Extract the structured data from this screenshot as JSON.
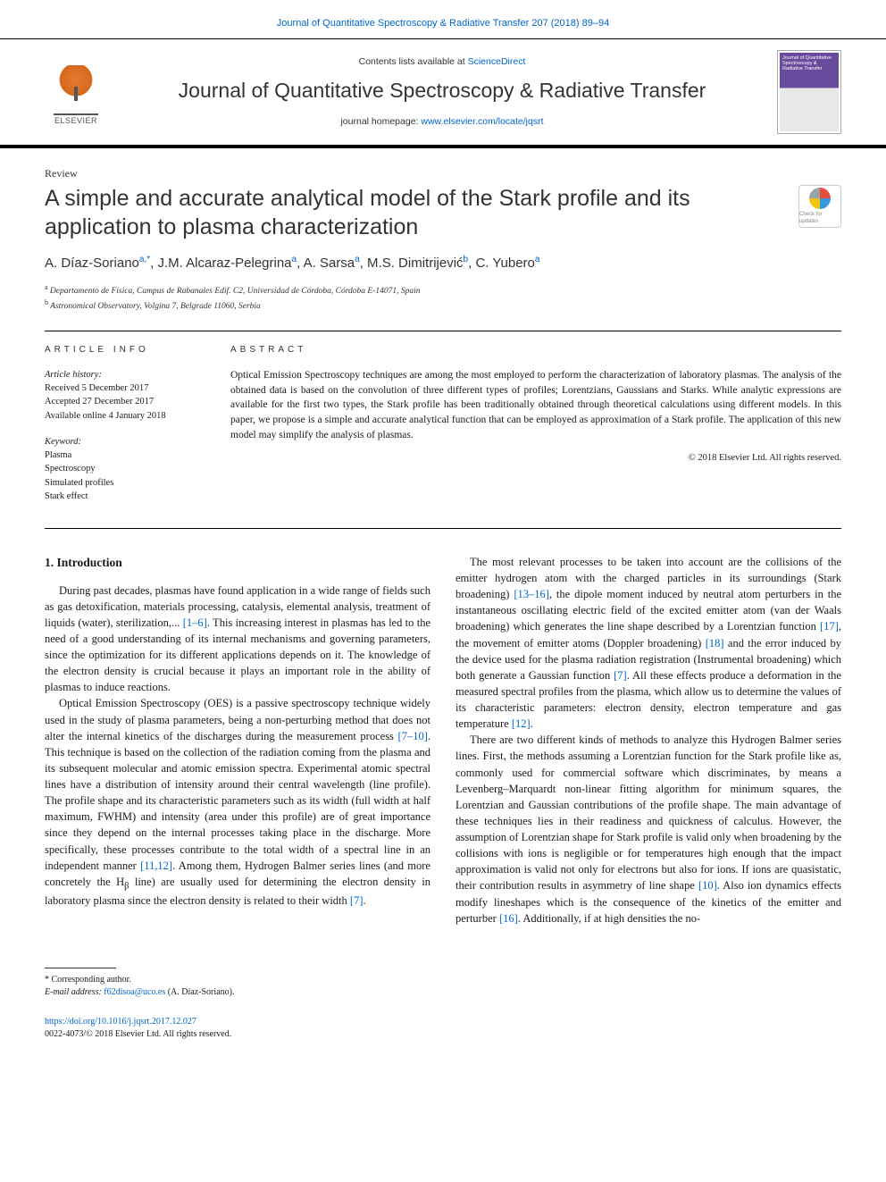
{
  "top": {
    "journal_line": "Journal of Quantitative Spectroscopy & Radiative Transfer 207 (2018) 89–94"
  },
  "header": {
    "contents_pre": "Contents lists available at ",
    "contents_link": "ScienceDirect",
    "journal_name": "Journal of Quantitative Spectroscopy & Radiative Transfer",
    "homepage_pre": "journal homepage: ",
    "homepage_link": "www.elsevier.com/locate/jqsrt",
    "elsevier": "ELSEVIER",
    "cover_title": "Journal of Quantitative Spectroscopy & Radiative Transfer"
  },
  "article": {
    "type": "Review",
    "title": "A simple and accurate analytical model of the Stark profile and its application to plasma characterization",
    "crossmark": "Check for updates",
    "authors_html": "A. Díaz-Soriano<sup>a,*</sup>, J.M. Alcaraz-Pelegrina<sup>a</sup>, A. Sarsa<sup>a</sup>, M.S. Dimitrijević<sup>b</sup>, C. Yubero<sup>a</sup>",
    "affiliations": {
      "a": "Departamento de Física, Campus de Rabanales Edif. C2, Universidad de Córdoba, Córdoba E-14071, Spain",
      "b": "Astronomical Observatory, Volgina 7, Belgrade 11060, Serbia"
    }
  },
  "info": {
    "label": "ARTICLE INFO",
    "history_label": "Article history:",
    "history": {
      "received": "Received 5 December 2017",
      "accepted": "Accepted 27 December 2017",
      "online": "Available online 4 January 2018"
    },
    "keyword_label": "Keyword:",
    "keywords": [
      "Plasma",
      "Spectroscopy",
      "Simulated profiles",
      "Stark effect"
    ]
  },
  "abstract": {
    "label": "ABSTRACT",
    "text": "Optical Emission Spectroscopy techniques are among the most employed to perform the characterization of laboratory plasmas. The analysis of the obtained data is based on the convolution of three different types of profiles; Lorentzians, Gaussians and Starks. While analytic expressions are available for the first two types, the Stark profile has been traditionally obtained through theoretical calculations using different models. In this paper, we propose is a simple and accurate analytical function that can be employed as approximation of a Stark profile. The application of this new model may simplify the analysis of plasmas.",
    "copyright": "© 2018 Elsevier Ltd. All rights reserved."
  },
  "body": {
    "section1_title": "1. Introduction",
    "p1_pre": "During past decades, plasmas have found application in a wide range of fields such as gas detoxification, materials processing, catalysis, elemental analysis, treatment of liquids (water), sterilization,... ",
    "p1_ref1": "[1–6]",
    "p1_post": ". This increasing interest in plasmas has led to the need of a good understanding of its internal mechanisms and governing parameters, since the optimization for its different applications depends on it. The knowledge of the electron density is crucial because it plays an important role in the ability of plasmas to induce reactions.",
    "p2_pre": "Optical Emission Spectroscopy (OES) is a passive spectroscopy technique widely used in the study of plasma parameters, being a non-perturbing method that does not alter the internal kinetics of the discharges during the measurement process ",
    "p2_ref1": "[7–10]",
    "p2_mid1": ". This technique is based on the collection of the radiation coming from the plasma and its subsequent molecular and atomic emission spectra. Experimental atomic spectral lines have a distribution of intensity around their central wavelength (line profile). The profile shape and its characteristic parameters such as its width (full width at half maximum, FWHM) and intensity (area under this profile) are of great importance since they depend on the internal processes taking place in the discharge. More specifically, these processes contribute to the total width of a spectral line in an independent manner ",
    "p2_ref2": "[11,12]",
    "p2_mid2": ". Among them, Hydrogen Balmer series lines (and more concretely the H",
    "p2_beta": "β",
    "p2_post": " line) are usually used for determining the electron density in laboratory plasma since the electron density is related to their width ",
    "p2_ref3": "[7]",
    "p2_end": ".",
    "p3_pre": "The most relevant processes to be taken into account are the collisions of the emitter hydrogen atom with the charged particles in its surroundings (Stark broadening) ",
    "p3_ref1": "[13–16]",
    "p3_mid1": ", the dipole moment induced by neutral atom perturbers in the instantaneous oscillating electric field of the excited emitter atom (van der Waals broadening) which generates the line shape described by a Lorentzian function ",
    "p3_ref2": "[17]",
    "p3_mid2": ", the movement of emitter atoms (Doppler broadening) ",
    "p3_ref3": "[18]",
    "p3_mid3": " and the error induced by the device used for the plasma radiation registration (Instrumental broadening) which both generate a Gaussian function ",
    "p3_ref4": "[7]",
    "p3_mid4": ". All these effects produce a deformation in the measured spectral profiles from the plasma, which allow us to determine the values of its characteristic parameters: electron density, electron temperature and gas temperature ",
    "p3_ref5": "[12]",
    "p3_end": ".",
    "p4_pre": "There are two different kinds of methods to analyze this Hydrogen Balmer series lines. First, the methods assuming a Lorentzian function for the Stark profile like as, commonly used for commercial software which discriminates, by means a Levenberg–Marquardt non-linear fitting algorithm for minimum squares, the Lorentzian and Gaussian contributions of the profile shape. The main advantage of these techniques lies in their readiness and quickness of calculus. However, the assumption of Lorentzian shape for Stark profile is valid only when broadening by the collisions with ions is negligible or for temperatures high enough that the impact approximation is valid not only for electrons but also for ions. If ions are quasistatic, their contribution results in asymmetry of line shape ",
    "p4_ref1": "[10]",
    "p4_mid1": ". Also ion dynamics effects modify lineshapes which is the consequence of the kinetics of the emitter and perturber ",
    "p4_ref2": "[16]",
    "p4_end": ". Additionally, if at high densities the no-"
  },
  "footer": {
    "corr_label": "* Corresponding author.",
    "email_label": "E-mail address:",
    "email": "f62disoa@uco.es",
    "email_author": "(A. Díaz-Soriano).",
    "doi": "https://doi.org/10.1016/j.jqsrt.2017.12.027",
    "issn_line": "0022-4073/© 2018 Elsevier Ltd. All rights reserved."
  },
  "colors": {
    "link": "#0066cc",
    "text": "#1a1a1a",
    "rule": "#000000",
    "elsevier_orange": "#e67a2e",
    "cover_purple": "#6a4a9c"
  },
  "typography": {
    "body_pt": 12.5,
    "title_pt": 25,
    "journal_header_pt": 23,
    "authors_pt": 15,
    "small_pt": 10.5
  }
}
